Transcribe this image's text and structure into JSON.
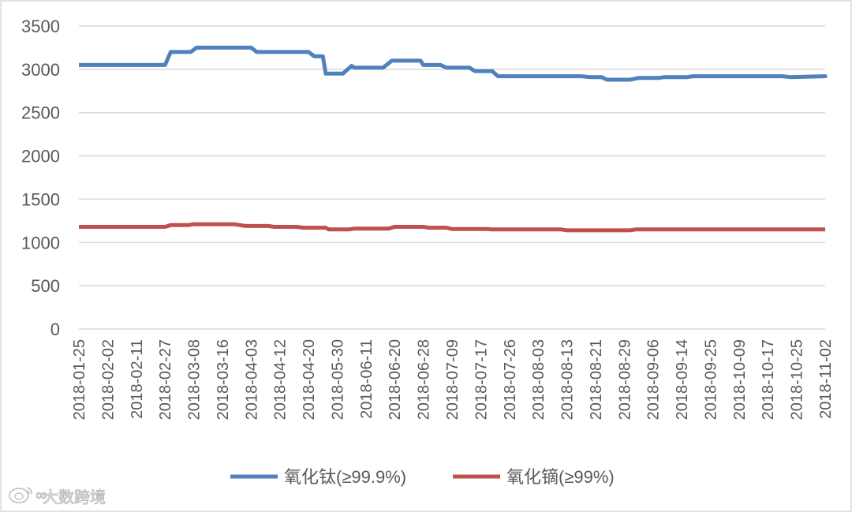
{
  "chart_data": {
    "type": "line",
    "title": "",
    "xlabel": "",
    "ylabel": "",
    "ylim": [
      0,
      3500
    ],
    "y_ticks": [
      0,
      500,
      1000,
      1500,
      2000,
      2500,
      3000,
      3500
    ],
    "grid": "horizontal",
    "legend_position": "bottom",
    "x_tick_labels": [
      "2018-01-25",
      "2018-02-02",
      "2018-02-11",
      "2018-02-27",
      "2018-03-08",
      "2018-03-16",
      "2018-04-03",
      "2018-04-12",
      "2018-04-20",
      "2018-05-30",
      "2018-06-11",
      "2018-06-20",
      "2018-06-28",
      "2018-07-09",
      "2018-07-17",
      "2018-07-26",
      "2018-08-03",
      "2018-08-13",
      "2018-08-21",
      "2018-08-29",
      "2018-09-06",
      "2018-09-14",
      "2018-09-25",
      "2018-10-09",
      "2018-10-17",
      "2018-10-25",
      "2018-11-02"
    ],
    "series": [
      {
        "name": "氧化钛(≥99.9%)",
        "color": "#4f81bd",
        "points": [
          [
            0,
            3050
          ],
          [
            1,
            3050
          ],
          [
            2,
            3050
          ],
          [
            3,
            3050
          ],
          [
            3.2,
            3200
          ],
          [
            3.9,
            3200
          ],
          [
            4.1,
            3250
          ],
          [
            6.0,
            3250
          ],
          [
            6.2,
            3200
          ],
          [
            8.0,
            3200
          ],
          [
            8.2,
            3150
          ],
          [
            8.5,
            3150
          ],
          [
            8.6,
            2950
          ],
          [
            9.2,
            2950
          ],
          [
            9.5,
            3040
          ],
          [
            9.6,
            3020
          ],
          [
            10.6,
            3020
          ],
          [
            10.9,
            3100
          ],
          [
            11.9,
            3100
          ],
          [
            12.0,
            3050
          ],
          [
            12.6,
            3050
          ],
          [
            12.8,
            3020
          ],
          [
            13.6,
            3020
          ],
          [
            13.8,
            2980
          ],
          [
            14.4,
            2980
          ],
          [
            14.6,
            2920
          ],
          [
            16.5,
            2920
          ],
          [
            17.5,
            2920
          ],
          [
            17.8,
            2910
          ],
          [
            18.2,
            2910
          ],
          [
            18.4,
            2880
          ],
          [
            19.2,
            2880
          ],
          [
            19.5,
            2900
          ],
          [
            20.2,
            2900
          ],
          [
            20.4,
            2910
          ],
          [
            21.2,
            2910
          ],
          [
            21.4,
            2920
          ],
          [
            22.0,
            2920
          ],
          [
            26,
            2920
          ],
          [
            24.5,
            2920
          ],
          [
            24.8,
            2910
          ],
          [
            26,
            2900
          ]
        ]
      },
      {
        "name": "氧化镝(≥99%)",
        "color": "#c0504d",
        "points": [
          [
            0,
            1180
          ],
          [
            3.0,
            1180
          ],
          [
            3.2,
            1200
          ],
          [
            3.8,
            1200
          ],
          [
            4.0,
            1210
          ],
          [
            5.4,
            1210
          ],
          [
            5.8,
            1190
          ],
          [
            6.6,
            1190
          ],
          [
            6.8,
            1180
          ],
          [
            7.6,
            1180
          ],
          [
            7.8,
            1170
          ],
          [
            8.6,
            1170
          ],
          [
            8.7,
            1150
          ],
          [
            9.4,
            1150
          ],
          [
            9.6,
            1160
          ],
          [
            10.8,
            1160
          ],
          [
            11.0,
            1180
          ],
          [
            12.0,
            1180
          ],
          [
            12.2,
            1170
          ],
          [
            12.8,
            1170
          ],
          [
            13.0,
            1155
          ],
          [
            14.2,
            1155
          ],
          [
            14.4,
            1150
          ],
          [
            16.8,
            1150
          ],
          [
            17.0,
            1140
          ],
          [
            19.2,
            1140
          ],
          [
            19.4,
            1150
          ],
          [
            26,
            1150
          ]
        ]
      }
    ]
  },
  "watermark": {
    "text": "大数跨境",
    "icon": "weibo-logo-icon"
  }
}
